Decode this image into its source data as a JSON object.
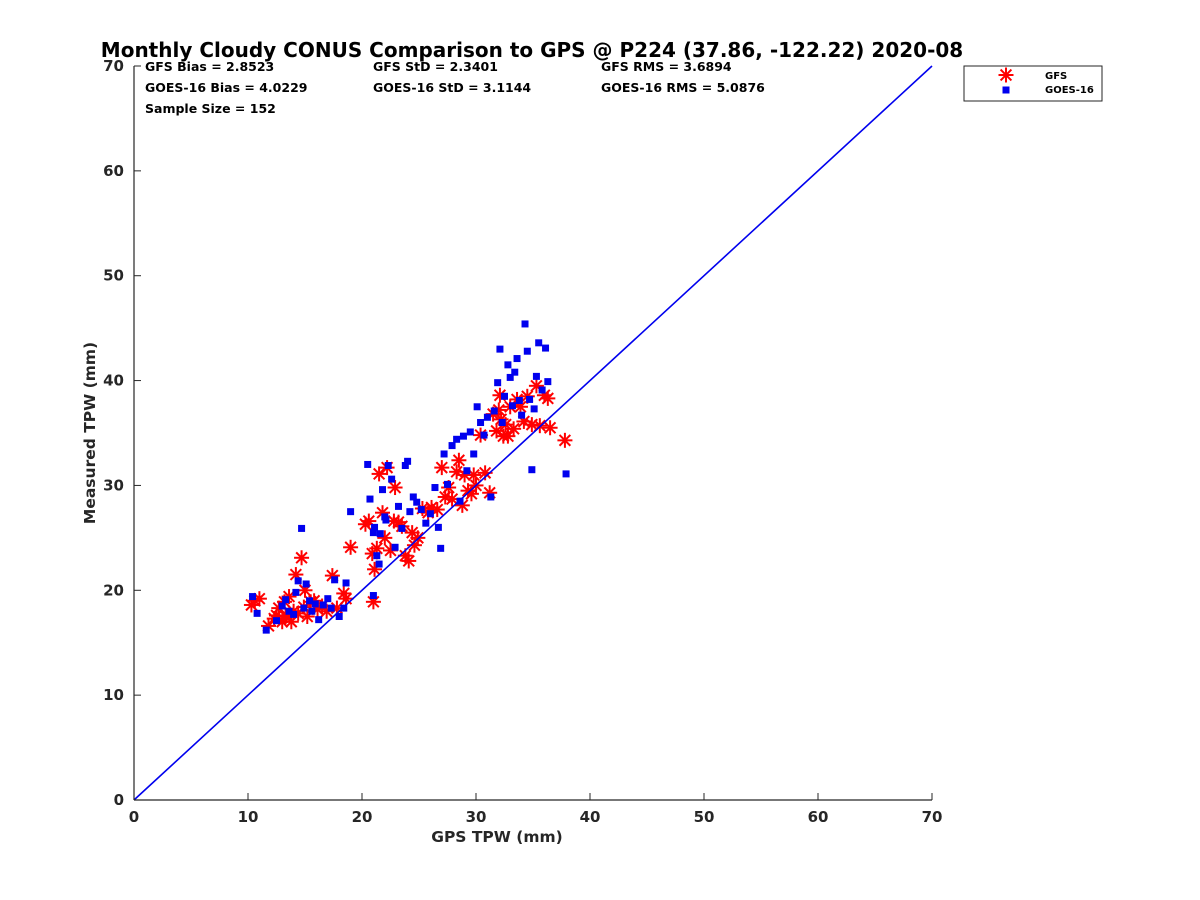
{
  "chart_data": {
    "type": "scatter",
    "title": "Monthly Cloudy CONUS Comparison to GPS @ P224 (37.86, -122.22) 2020-08",
    "xlabel": "GPS TPW (mm)",
    "ylabel": "Measured TPW (mm)",
    "xlim": [
      0,
      70
    ],
    "ylim": [
      0,
      70
    ],
    "xticks": [
      0,
      10,
      20,
      30,
      40,
      50,
      60,
      70
    ],
    "yticks": [
      0,
      10,
      20,
      30,
      40,
      50,
      60,
      70
    ],
    "grid": false,
    "legend_position": "top-right",
    "stats": [
      [
        "GFS Bias = 2.8523",
        "GFS StD = 2.3401",
        "GFS RMS = 3.6894"
      ],
      [
        "GOES-16 Bias = 4.0229",
        "GOES-16 StD = 3.1144",
        "GOES-16 RMS = 5.0876"
      ],
      [
        "Sample Size = 152"
      ]
    ],
    "reference_line": {
      "x": [
        0,
        70
      ],
      "y": [
        0,
        70
      ],
      "color": "#0000ee"
    },
    "series": [
      {
        "name": "GFS",
        "marker": "asterisk",
        "color": "#ff0000",
        "points": [
          [
            10.3,
            18.6
          ],
          [
            10.6,
            19.0
          ],
          [
            11.0,
            19.2
          ],
          [
            11.8,
            16.6
          ],
          [
            12.3,
            17.3
          ],
          [
            12.7,
            18.3
          ],
          [
            13.0,
            17.0
          ],
          [
            13.2,
            18.9
          ],
          [
            13.4,
            17.6
          ],
          [
            13.6,
            19.4
          ],
          [
            13.8,
            17.0
          ],
          [
            14.0,
            18.0
          ],
          [
            14.2,
            21.5
          ],
          [
            14.4,
            17.8
          ],
          [
            14.7,
            23.1
          ],
          [
            14.9,
            18.4
          ],
          [
            15.2,
            17.5
          ],
          [
            15.5,
            18.9
          ],
          [
            15.8,
            19.0
          ],
          [
            16.1,
            18.2
          ],
          [
            16.5,
            18.5
          ],
          [
            16.9,
            18.0
          ],
          [
            17.4,
            21.4
          ],
          [
            17.8,
            18.3
          ],
          [
            18.4,
            19.7
          ],
          [
            18.6,
            19.2
          ],
          [
            19.0,
            24.1
          ],
          [
            20.3,
            26.3
          ],
          [
            20.6,
            26.6
          ],
          [
            20.9,
            23.5
          ],
          [
            21.1,
            22.0
          ],
          [
            21.0,
            18.9
          ],
          [
            21.3,
            24.0
          ],
          [
            21.5,
            31.1
          ],
          [
            21.8,
            27.4
          ],
          [
            22.0,
            25.0
          ],
          [
            22.2,
            31.7
          ],
          [
            22.5,
            23.8
          ],
          [
            22.8,
            26.6
          ],
          [
            22.9,
            29.8
          ],
          [
            23.2,
            26.5
          ],
          [
            23.5,
            26.1
          ],
          [
            23.8,
            23.3
          ],
          [
            24.1,
            22.8
          ],
          [
            24.4,
            25.5
          ],
          [
            24.6,
            24.3
          ],
          [
            24.9,
            25.0
          ],
          [
            25.3,
            27.8
          ],
          [
            25.8,
            27.4
          ],
          [
            26.1,
            27.9
          ],
          [
            26.6,
            27.7
          ],
          [
            27.0,
            31.7
          ],
          [
            27.3,
            28.9
          ],
          [
            27.6,
            29.8
          ],
          [
            27.9,
            28.7
          ],
          [
            28.3,
            31.3
          ],
          [
            28.5,
            32.4
          ],
          [
            28.8,
            28.1
          ],
          [
            29.0,
            31.0
          ],
          [
            29.3,
            29.5
          ],
          [
            29.6,
            29.2
          ],
          [
            30.0,
            30.0
          ],
          [
            30.4,
            34.8
          ],
          [
            30.8,
            31.2
          ],
          [
            31.2,
            29.3
          ],
          [
            31.5,
            36.8
          ],
          [
            31.8,
            35.2
          ],
          [
            32.0,
            37.2
          ],
          [
            32.2,
            36.3
          ],
          [
            32.4,
            34.7
          ],
          [
            32.6,
            35.8
          ],
          [
            32.8,
            34.7
          ],
          [
            33.0,
            37.5
          ],
          [
            33.3,
            35.4
          ],
          [
            33.6,
            38.2
          ],
          [
            33.9,
            37.5
          ],
          [
            34.2,
            36.1
          ],
          [
            34.5,
            38.5
          ],
          [
            34.9,
            35.8
          ],
          [
            35.3,
            39.5
          ],
          [
            35.6,
            35.7
          ],
          [
            36.0,
            38.6
          ],
          [
            36.3,
            38.3
          ],
          [
            36.5,
            35.5
          ],
          [
            37.8,
            34.3
          ],
          [
            12.5,
            17.6
          ],
          [
            13.3,
            17.5
          ],
          [
            15.0,
            20.0
          ],
          [
            29.8,
            31.0
          ],
          [
            32.1,
            38.6
          ]
        ]
      },
      {
        "name": "GOES-16",
        "marker": "square",
        "color": "#0000ee",
        "points": [
          [
            10.4,
            19.4
          ],
          [
            10.8,
            17.8
          ],
          [
            11.6,
            16.2
          ],
          [
            12.5,
            17.1
          ],
          [
            13.0,
            18.5
          ],
          [
            13.3,
            19.1
          ],
          [
            13.6,
            18.0
          ],
          [
            14.0,
            17.7
          ],
          [
            14.2,
            19.8
          ],
          [
            14.4,
            20.9
          ],
          [
            14.7,
            25.9
          ],
          [
            14.9,
            18.3
          ],
          [
            15.1,
            20.6
          ],
          [
            15.4,
            19.0
          ],
          [
            15.6,
            18.0
          ],
          [
            15.9,
            18.7
          ],
          [
            16.2,
            17.2
          ],
          [
            16.6,
            18.6
          ],
          [
            17.0,
            19.2
          ],
          [
            17.3,
            18.3
          ],
          [
            17.6,
            21.0
          ],
          [
            18.0,
            17.5
          ],
          [
            18.4,
            18.3
          ],
          [
            18.6,
            20.7
          ],
          [
            19.0,
            27.5
          ],
          [
            20.5,
            32.0
          ],
          [
            20.7,
            28.7
          ],
          [
            21.0,
            19.5
          ],
          [
            21.1,
            26.0
          ],
          [
            21.3,
            23.3
          ],
          [
            21.5,
            22.5
          ],
          [
            21.6,
            25.4
          ],
          [
            21.8,
            29.6
          ],
          [
            22.1,
            26.7
          ],
          [
            22.3,
            31.9
          ],
          [
            22.6,
            30.6
          ],
          [
            22.9,
            24.1
          ],
          [
            23.2,
            28.0
          ],
          [
            23.5,
            25.9
          ],
          [
            23.8,
            31.9
          ],
          [
            24.2,
            27.5
          ],
          [
            24.5,
            28.9
          ],
          [
            24.8,
            28.4
          ],
          [
            25.2,
            27.7
          ],
          [
            25.6,
            26.4
          ],
          [
            26.0,
            27.3
          ],
          [
            26.4,
            29.8
          ],
          [
            26.7,
            26.0
          ],
          [
            26.9,
            24.0
          ],
          [
            27.2,
            33.0
          ],
          [
            27.5,
            30.1
          ],
          [
            27.9,
            33.8
          ],
          [
            28.3,
            34.4
          ],
          [
            28.6,
            28.5
          ],
          [
            28.9,
            34.7
          ],
          [
            29.2,
            31.4
          ],
          [
            29.5,
            35.1
          ],
          [
            29.8,
            33.0
          ],
          [
            30.1,
            37.5
          ],
          [
            30.4,
            36.0
          ],
          [
            30.7,
            34.8
          ],
          [
            31.0,
            36.5
          ],
          [
            31.3,
            28.9
          ],
          [
            31.6,
            37.1
          ],
          [
            31.9,
            39.8
          ],
          [
            32.1,
            43.0
          ],
          [
            32.3,
            36.0
          ],
          [
            32.5,
            38.5
          ],
          [
            32.8,
            41.5
          ],
          [
            33.0,
            40.3
          ],
          [
            33.2,
            37.6
          ],
          [
            33.4,
            40.8
          ],
          [
            33.6,
            42.1
          ],
          [
            33.8,
            38.1
          ],
          [
            34.0,
            36.7
          ],
          [
            34.3,
            45.4
          ],
          [
            34.5,
            42.8
          ],
          [
            34.7,
            38.2
          ],
          [
            34.9,
            31.5
          ],
          [
            35.1,
            37.3
          ],
          [
            35.3,
            40.4
          ],
          [
            35.5,
            43.6
          ],
          [
            35.8,
            39.1
          ],
          [
            36.1,
            43.1
          ],
          [
            36.3,
            39.9
          ],
          [
            37.9,
            31.1
          ],
          [
            21.0,
            25.5
          ],
          [
            22.0,
            27.0
          ],
          [
            24.0,
            32.3
          ]
        ]
      }
    ]
  }
}
